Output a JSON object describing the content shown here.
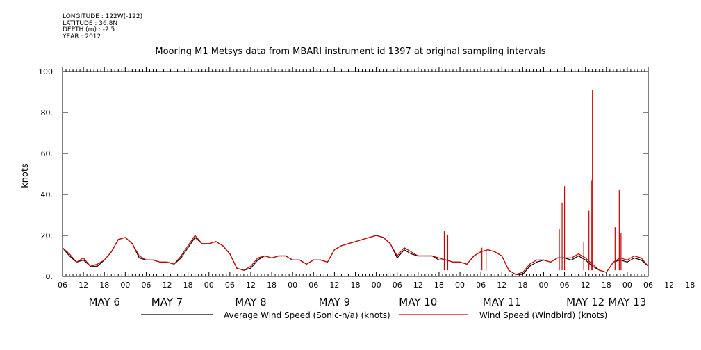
{
  "header": {
    "longitude": "LONGITUDE : 122W(-122)",
    "latitude": "LATITUDE : 36.8N",
    "depth": "DEPTH (m) : -2.5",
    "year": "YEAR : 2012"
  },
  "chart_data": {
    "type": "line",
    "title": "Mooring M1 Metsys data from MBARI instrument id 1397 at original sampling intervals",
    "ylabel": "knots",
    "xlabel": "",
    "ylim": [
      0,
      100
    ],
    "xlim_hours": [
      6,
      174
    ],
    "yticks": [
      0,
      20,
      40,
      60,
      80,
      100
    ],
    "ytick_labels": [
      "0.",
      "20.",
      "40.",
      "60.",
      "80.",
      "100"
    ],
    "hour_ticks": [
      6,
      12,
      18,
      0,
      6,
      12,
      18,
      0,
      6,
      12,
      18,
      0,
      6,
      12,
      18,
      0,
      6,
      12,
      18,
      0,
      6,
      12,
      18,
      0,
      6,
      12,
      18,
      0,
      6,
      12,
      18,
      0,
      6
    ],
    "day_labels": [
      {
        "label": "MAY  6",
        "hour": 18
      },
      {
        "label": "MAY  7",
        "hour": 36
      },
      {
        "label": "MAY  8",
        "hour": 60
      },
      {
        "label": "MAY  9",
        "hour": 84
      },
      {
        "label": "MAY 10",
        "hour": 108
      },
      {
        "label": "MAY 11",
        "hour": 132
      },
      {
        "label": "MAY 12",
        "hour": 156
      },
      {
        "label": "MAY 13",
        "hour": 168
      }
    ],
    "grid": false,
    "legend_position": "bottom",
    "series": [
      {
        "name": "Average Wind Speed (Sonic-n/a) (knots)",
        "color": "#000000",
        "x": [
          6,
          8,
          10,
          12,
          14,
          16,
          18,
          20,
          22,
          24,
          26,
          28,
          30,
          32,
          34,
          36,
          38,
          40,
          42,
          44,
          46,
          48,
          50,
          52,
          54,
          56,
          58,
          60,
          62,
          64,
          66,
          68,
          70,
          72,
          74,
          76,
          78,
          80,
          82,
          84,
          86,
          88,
          90,
          92,
          94,
          96,
          98,
          100,
          102,
          104,
          106,
          108,
          110,
          112,
          114,
          116,
          118,
          120,
          122,
          124,
          126,
          128,
          130,
          132,
          134,
          136,
          138,
          140,
          142,
          144,
          146,
          148,
          150,
          152,
          154,
          156,
          158,
          160,
          162,
          164,
          166,
          168,
          170,
          172,
          174
        ],
        "y": [
          14,
          10,
          7,
          8,
          5,
          5,
          8,
          12,
          18,
          19,
          16,
          9,
          8,
          8,
          7,
          7,
          6,
          9,
          14,
          19,
          16,
          16,
          17,
          15,
          11,
          4,
          3,
          4,
          8,
          10,
          9,
          10,
          10,
          8,
          8,
          6,
          8,
          8,
          7,
          13,
          15,
          16,
          17,
          18,
          19,
          20,
          19,
          16,
          9,
          13,
          11,
          10,
          10,
          10,
          8,
          8,
          7,
          7,
          6,
          10,
          12,
          13,
          12,
          10,
          3,
          1,
          1,
          5,
          7,
          8,
          7,
          9,
          9,
          8,
          10,
          8,
          5,
          3,
          2,
          7,
          8,
          7,
          9,
          8,
          5
        ]
      },
      {
        "name": "Wind Speed (Windbird) (knots)",
        "color": "#cc0000",
        "x": [
          6,
          8,
          10,
          12,
          14,
          16,
          18,
          20,
          22,
          24,
          26,
          28,
          30,
          32,
          34,
          36,
          38,
          40,
          42,
          44,
          46,
          48,
          50,
          52,
          54,
          56,
          58,
          60,
          62,
          64,
          66,
          68,
          70,
          72,
          74,
          76,
          78,
          80,
          82,
          84,
          86,
          88,
          90,
          92,
          94,
          96,
          98,
          100,
          102,
          104,
          106,
          108,
          110,
          112,
          114,
          116,
          118,
          120,
          122,
          124,
          126,
          128,
          130,
          132,
          134,
          136,
          138,
          140,
          142,
          144,
          146,
          148,
          150,
          152,
          154,
          156,
          158,
          160,
          162,
          164,
          166,
          168,
          170,
          172,
          174
        ],
        "y": [
          14,
          11,
          7,
          9,
          5,
          6,
          8,
          12,
          18,
          19,
          16,
          10,
          8,
          8,
          7,
          7,
          6,
          10,
          15,
          20,
          16,
          16,
          17,
          15,
          11,
          4,
          3,
          5,
          9,
          10,
          9,
          10,
          10,
          8,
          8,
          6,
          8,
          8,
          7,
          13,
          15,
          16,
          17,
          18,
          19,
          20,
          19,
          16,
          10,
          14,
          12,
          10,
          10,
          10,
          9,
          8,
          7,
          7,
          6,
          10,
          12,
          13,
          12,
          10,
          3,
          1,
          2,
          6,
          8,
          8,
          7,
          9,
          9,
          9,
          11,
          9,
          6,
          3,
          2,
          7,
          9,
          8,
          10,
          9,
          5
        ],
        "spikes": [
          {
            "x": 115.5,
            "y": 22
          },
          {
            "x": 116.5,
            "y": 20
          },
          {
            "x": 126.3,
            "y": 14
          },
          {
            "x": 127.5,
            "y": 13
          },
          {
            "x": 148.5,
            "y": 23
          },
          {
            "x": 149.3,
            "y": 36
          },
          {
            "x": 150.0,
            "y": 44
          },
          {
            "x": 155.5,
            "y": 17
          },
          {
            "x": 157.0,
            "y": 32
          },
          {
            "x": 157.7,
            "y": 47
          },
          {
            "x": 158.0,
            "y": 91
          },
          {
            "x": 164.5,
            "y": 24
          },
          {
            "x": 165.7,
            "y": 42
          },
          {
            "x": 166.2,
            "y": 21
          }
        ]
      }
    ]
  }
}
